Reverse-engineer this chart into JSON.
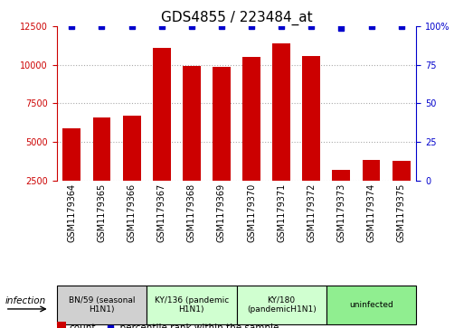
{
  "title": "GDS4855 / 223484_at",
  "samples": [
    "GSM1179364",
    "GSM1179365",
    "GSM1179366",
    "GSM1179367",
    "GSM1179368",
    "GSM1179369",
    "GSM1179370",
    "GSM1179371",
    "GSM1179372",
    "GSM1179373",
    "GSM1179374",
    "GSM1179375"
  ],
  "counts": [
    5900,
    6600,
    6700,
    11100,
    9900,
    9850,
    10500,
    11400,
    10550,
    3200,
    3850,
    3750
  ],
  "percentiles": [
    100,
    100,
    100,
    100,
    100,
    100,
    100,
    100,
    100,
    99,
    100,
    100
  ],
  "groups": [
    {
      "label": "BN/59 (seasonal\nH1N1)",
      "start": 0,
      "end": 3,
      "color": "#d0d0d0"
    },
    {
      "label": "KY/136 (pandemic\nH1N1)",
      "start": 3,
      "end": 6,
      "color": "#d0ffd0"
    },
    {
      "label": "KY/180\n(pandemicH1N1)",
      "start": 6,
      "end": 9,
      "color": "#d0ffd0"
    },
    {
      "label": "uninfected",
      "start": 9,
      "end": 12,
      "color": "#90ee90"
    }
  ],
  "ylim_left": [
    2500,
    12500
  ],
  "ylim_right": [
    0,
    100
  ],
  "yticks_left": [
    2500,
    5000,
    7500,
    10000,
    12500
  ],
  "yticks_right": [
    0,
    25,
    50,
    75,
    100
  ],
  "bar_color": "#cc0000",
  "dot_color": "#0000cc",
  "bar_width": 0.6,
  "grid_color": "#aaaaaa",
  "bg_color": "#ffffff",
  "title_fontsize": 11,
  "tick_fontsize": 7,
  "label_fontsize": 7.5
}
